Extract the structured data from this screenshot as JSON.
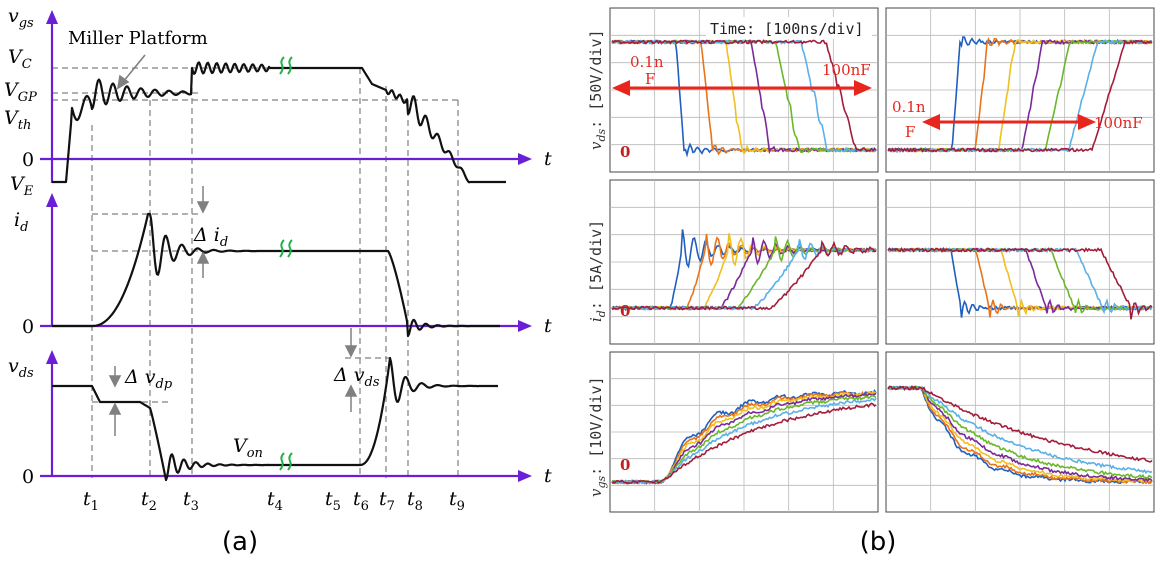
{
  "panel_a": {
    "caption": "(a)",
    "axis_t": "t",
    "vgs_label": "v",
    "vgs_sub": "gs",
    "vc_label": "V",
    "vc_sub": "C",
    "vgp_label": "V",
    "vgp_sub": "GP",
    "vth_label": "V",
    "vth_sub": "th",
    "ve_label": "V",
    "ve_sub": "E",
    "zero": "0",
    "miller": "Miller Platform",
    "id_label": "i",
    "id_sub": "d",
    "delta_id": "Δ i",
    "delta_id_sub": "d",
    "vds_label": "v",
    "vds_sub": "ds",
    "delta_vdp": "Δ v",
    "delta_vdp_sub": "dp",
    "delta_vds": "Δ v",
    "delta_vds_sub": "ds",
    "von": "V",
    "von_sub": "on",
    "times": [
      {
        "t": "t",
        "sub": "1"
      },
      {
        "t": "t",
        "sub": "2"
      },
      {
        "t": "t",
        "sub": "3"
      },
      {
        "t": "t",
        "sub": "4"
      },
      {
        "t": "t",
        "sub": "5"
      },
      {
        "t": "t",
        "sub": "6"
      },
      {
        "t": "t",
        "sub": "7"
      },
      {
        "t": "t",
        "sub": "8"
      },
      {
        "t": "t",
        "sub": "9"
      }
    ],
    "colors": {
      "axis": "#6a1fd6",
      "wave": "#111111",
      "break": "#22b14c"
    }
  },
  "panel_b": {
    "caption": "(b)",
    "time_label": "Time: [100ns/div]",
    "vds_ylabel": "v",
    "vds_ysub": "ds",
    "vds_div": ": [50V/div]",
    "id_ylabel": "i",
    "id_ysub": "d",
    "id_div": ": [5A/div]",
    "vgs_ylabel": "v",
    "vgs_ysub": "gs",
    "vgs_div": ": [10V/div]",
    "zero": "0",
    "left_small": "0.1n",
    "left_small_f": "F",
    "left_big": "100nF",
    "right_small": "0.1n",
    "right_small_f": "F",
    "right_big": "100nF",
    "trace_colors": [
      "#1f5fbf",
      "#e8741a",
      "#f0c020",
      "#7a2a9a",
      "#6ab82a",
      "#5ab0e8",
      "#a31d3a"
    ],
    "annotation_color": "#e8261e"
  }
}
